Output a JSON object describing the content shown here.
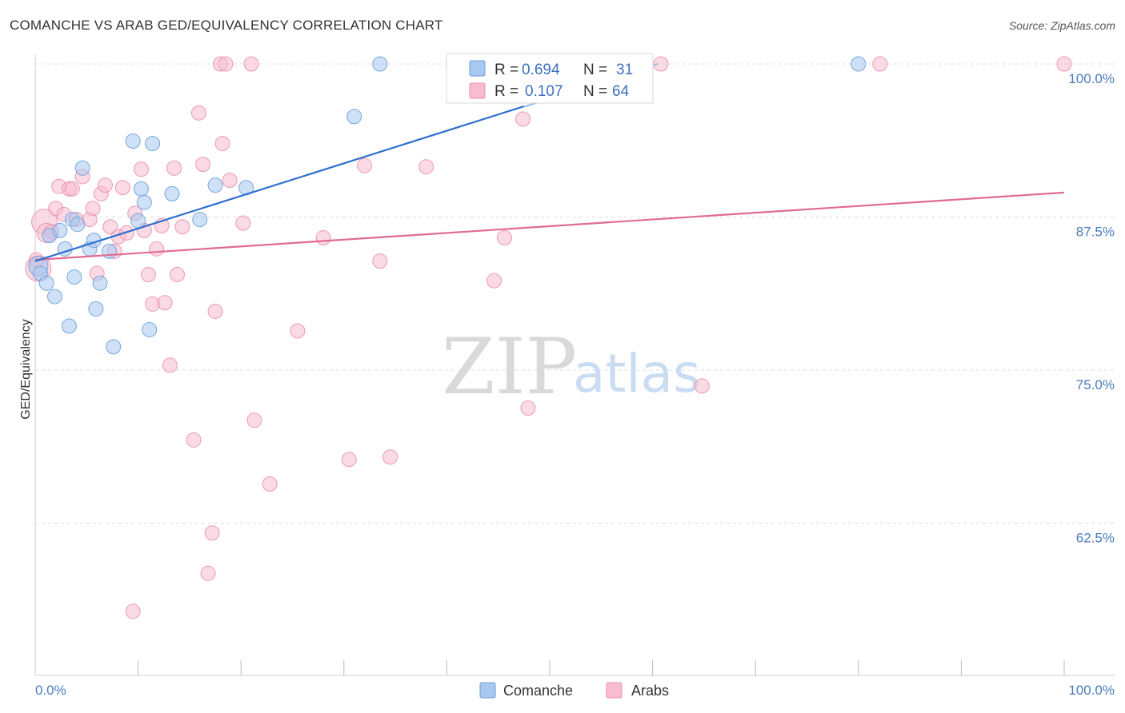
{
  "header": {
    "title": "COMANCHE VS ARAB GED/EQUIVALENCY CORRELATION CHART",
    "source": "Source: ZipAtlas.com"
  },
  "watermark": {
    "zip": "ZIP",
    "atlas": "atlas"
  },
  "legend": {
    "r_label": "R = ",
    "n_label": "N = ",
    "comanche": {
      "r": "0.694",
      "n": "31"
    },
    "arabs": {
      "r": "0.107",
      "n": "64"
    }
  },
  "colors": {
    "comanche_fill": "#a8c8f0",
    "comanche_stroke": "#6a9fd8",
    "comanche_line": "#2f6fcf",
    "arabs_fill": "#f8bcd0",
    "arabs_stroke": "#e890ac",
    "arabs_line": "#e06b93",
    "grid": "#dddddd",
    "tick_label": "#4a7cc0"
  },
  "chart_data": {
    "type": "scatter",
    "title": "COMANCHE VS ARAB GED/EQUIVALENCY CORRELATION CHART",
    "xlabel": "",
    "ylabel": "GED/Equivalency",
    "xlim": [
      0,
      100
    ],
    "ylim": [
      50,
      101.2
    ],
    "x_tick_labels": [
      "0.0%",
      "100.0%"
    ],
    "y_ticks": [
      62.5,
      75.0,
      87.5,
      100.0
    ],
    "y_tick_labels": [
      "62.5%",
      "75.0%",
      "87.5%",
      "100.0%"
    ],
    "grid": true,
    "legend_position": "top-center",
    "series": [
      {
        "name": "Comanche",
        "r": 0.694,
        "n": 31,
        "trend": {
          "x": [
            0,
            60.5
          ],
          "y": [
            83.9,
            100.0
          ]
        },
        "trend_dashed": {
          "x": [
            47.5,
            60.5
          ],
          "y": [
            96.5,
            100.0
          ]
        },
        "points": [
          [
            0.3,
            83.5,
            12
          ],
          [
            0.5,
            82.9,
            9
          ],
          [
            1.1,
            82.1,
            9
          ],
          [
            1.4,
            86.0,
            9
          ],
          [
            1.9,
            81.0,
            9
          ],
          [
            2.4,
            86.4,
            9
          ],
          [
            2.9,
            84.9,
            9
          ],
          [
            3.3,
            78.6,
            9
          ],
          [
            3.6,
            87.3,
            9
          ],
          [
            3.8,
            82.6,
            9
          ],
          [
            4.1,
            86.9,
            9
          ],
          [
            4.6,
            91.5,
            9
          ],
          [
            5.3,
            84.9,
            9
          ],
          [
            5.7,
            85.6,
            9
          ],
          [
            5.9,
            80.0,
            9
          ],
          [
            6.3,
            82.1,
            9
          ],
          [
            7.2,
            84.7,
            9
          ],
          [
            7.6,
            76.9,
            9
          ],
          [
            9.5,
            93.7,
            9
          ],
          [
            10.0,
            87.2,
            9
          ],
          [
            10.3,
            89.8,
            9
          ],
          [
            10.6,
            88.7,
            9
          ],
          [
            11.1,
            78.3,
            9
          ],
          [
            11.4,
            93.5,
            9
          ],
          [
            13.3,
            89.4,
            9
          ],
          [
            16.0,
            87.3,
            9
          ],
          [
            17.5,
            90.1,
            9
          ],
          [
            20.5,
            89.9,
            9
          ],
          [
            31.0,
            95.7,
            9
          ],
          [
            33.5,
            100.0,
            9
          ],
          [
            80.0,
            100.0,
            9
          ]
        ]
      },
      {
        "name": "Arabs",
        "r": 0.107,
        "n": 64,
        "trend": {
          "x": [
            0,
            100
          ],
          "y": [
            84.0,
            89.5
          ]
        },
        "points": [
          [
            0.3,
            83.3,
            16
          ],
          [
            0.9,
            87.1,
            16
          ],
          [
            1.1,
            86.2,
            12
          ],
          [
            1.6,
            86.3,
            9
          ],
          [
            2.0,
            88.2,
            9
          ],
          [
            2.3,
            90.0,
            9
          ],
          [
            2.8,
            87.7,
            9
          ],
          [
            3.3,
            89.8,
            9
          ],
          [
            3.6,
            89.8,
            9
          ],
          [
            4.0,
            87.3,
            9
          ],
          [
            4.6,
            90.8,
            9
          ],
          [
            5.3,
            87.3,
            9
          ],
          [
            5.6,
            88.2,
            9
          ],
          [
            6.0,
            82.9,
            9
          ],
          [
            6.4,
            89.4,
            9
          ],
          [
            6.8,
            90.1,
            9
          ],
          [
            7.3,
            86.7,
            9
          ],
          [
            7.7,
            84.7,
            9
          ],
          [
            8.1,
            85.9,
            9
          ],
          [
            8.5,
            89.9,
            9
          ],
          [
            8.9,
            86.2,
            9
          ],
          [
            9.5,
            55.3,
            9
          ],
          [
            9.7,
            87.8,
            9
          ],
          [
            10.3,
            91.4,
            9
          ],
          [
            10.6,
            86.4,
            9
          ],
          [
            11.0,
            82.8,
            9
          ],
          [
            11.4,
            80.4,
            9
          ],
          [
            11.8,
            84.9,
            9
          ],
          [
            12.3,
            86.8,
            9
          ],
          [
            12.6,
            80.5,
            9
          ],
          [
            13.1,
            75.4,
            9
          ],
          [
            13.5,
            91.5,
            9
          ],
          [
            13.8,
            82.8,
            9
          ],
          [
            14.3,
            86.7,
            9
          ],
          [
            15.4,
            69.3,
            9
          ],
          [
            15.9,
            96.0,
            9
          ],
          [
            16.3,
            91.8,
            9
          ],
          [
            16.8,
            58.4,
            9
          ],
          [
            17.2,
            61.7,
            9
          ],
          [
            17.5,
            79.8,
            9
          ],
          [
            18.0,
            100.0,
            9
          ],
          [
            18.2,
            93.5,
            9
          ],
          [
            18.5,
            100.0,
            9
          ],
          [
            18.9,
            90.5,
            9
          ],
          [
            20.2,
            87.0,
            9
          ],
          [
            21.0,
            100.0,
            9
          ],
          [
            21.3,
            70.9,
            9
          ],
          [
            22.8,
            65.7,
            9
          ],
          [
            25.5,
            78.2,
            9
          ],
          [
            28.0,
            85.8,
            9
          ],
          [
            30.5,
            67.7,
            9
          ],
          [
            32.0,
            91.7,
            9
          ],
          [
            33.5,
            83.9,
            9
          ],
          [
            34.5,
            67.9,
            9
          ],
          [
            38.0,
            91.6,
            9
          ],
          [
            44.6,
            82.3,
            9
          ],
          [
            45.6,
            85.8,
            9
          ],
          [
            47.4,
            95.5,
            9
          ],
          [
            47.9,
            71.9,
            9
          ],
          [
            60.8,
            100.0,
            9
          ],
          [
            64.8,
            73.7,
            9
          ],
          [
            82.1,
            100.0,
            9
          ],
          [
            100.0,
            100.0,
            9
          ],
          [
            0.1,
            84.0,
            9
          ]
        ]
      }
    ]
  }
}
